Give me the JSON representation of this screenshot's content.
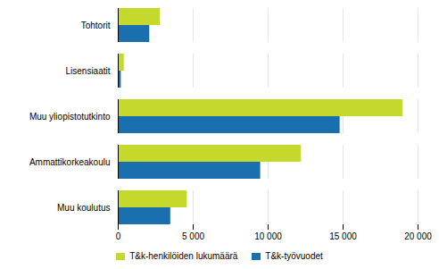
{
  "chart_data": {
    "type": "bar",
    "orientation": "horizontal",
    "categories": [
      "Muu koulutus",
      "Ammattikorkeakoulu",
      "Muu yliopistotutkinto",
      "Lisensiaatit",
      "Tohtorit"
    ],
    "series": [
      {
        "name": "T&k-henkilöiden lukumäärä",
        "color": "#c5d92d",
        "values": [
          4600,
          12200,
          19000,
          400,
          2800
        ]
      },
      {
        "name": "T&k-työvuodet",
        "color": "#1a6faf",
        "values": [
          3500,
          9500,
          14800,
          200,
          2100
        ]
      }
    ],
    "xlim": [
      0,
      20000
    ],
    "xticks": [
      0,
      {
        "value": 5000,
        "label": "5 000"
      },
      {
        "value": 10000,
        "label": "10 000"
      },
      {
        "value": 15000,
        "label": "15 000"
      },
      {
        "value": 20000,
        "label": "20 000"
      }
    ],
    "grid": true,
    "legend": "bottom"
  }
}
